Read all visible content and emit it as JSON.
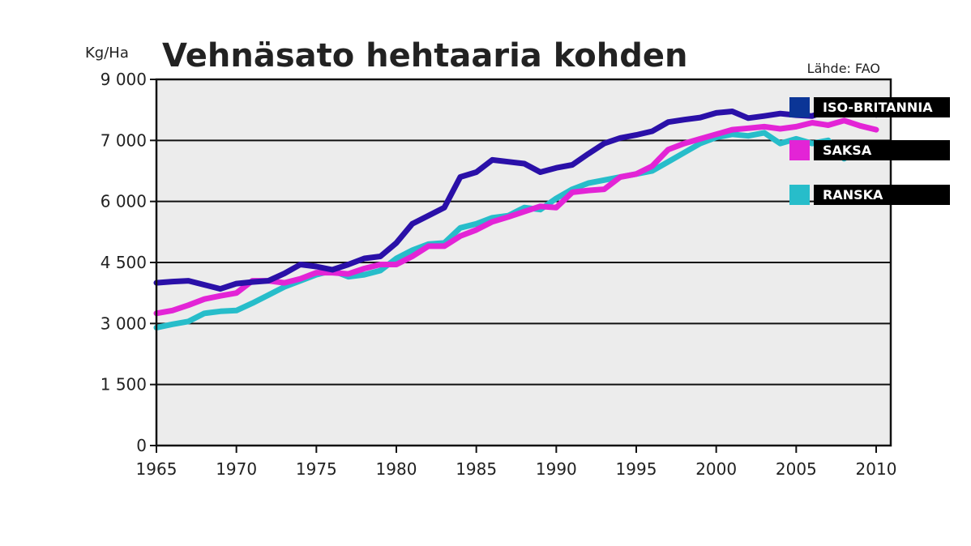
{
  "chart_data": {
    "type": "line",
    "title": "Vehnäsato hehtaaria kohden",
    "ylabel": "Kg/Ha",
    "xlabel": "",
    "source": "Lähde: FAO",
    "xlim": [
      1965,
      2011
    ],
    "ylim": [
      0,
      9000
    ],
    "x_ticks": [
      1965,
      1970,
      1975,
      1980,
      1985,
      1990,
      1995,
      2000,
      2005,
      2010
    ],
    "y_ticks": [
      0,
      1500,
      3000,
      4500,
      6000,
      7000,
      9000
    ],
    "y_tick_labels": [
      "0",
      "1 500",
      "3 000",
      "4 500",
      "6 000",
      "7 000",
      "9 000"
    ],
    "grid": "horizontal",
    "legend_position": "right",
    "x": [
      1965,
      1966,
      1967,
      1968,
      1969,
      1970,
      1971,
      1972,
      1973,
      1974,
      1975,
      1976,
      1977,
      1978,
      1979,
      1980,
      1981,
      1982,
      1983,
      1984,
      1985,
      1986,
      1987,
      1988,
      1989,
      1990,
      1991,
      1992,
      1993,
      1994,
      1995,
      1996,
      1997,
      1998,
      1999,
      2000,
      2001,
      2002,
      2003,
      2004,
      2005,
      2006,
      2007,
      2008,
      2009,
      2010
    ],
    "series": [
      {
        "name": "ISO-BRITANNIA",
        "color": "#2a10a8",
        "values": [
          4000,
          4030,
          4050,
          3950,
          3850,
          3980,
          4020,
          4050,
          4230,
          4450,
          4400,
          4320,
          4450,
          4600,
          4650,
          4980,
          5450,
          5650,
          5850,
          6400,
          6480,
          6680,
          6650,
          6620,
          6480,
          6550,
          6600,
          6780,
          6950,
          7080,
          7180,
          7300,
          7600,
          7680,
          7750,
          7900,
          7950,
          7730,
          7800,
          7880,
          7830,
          7800,
          7980,
          7850,
          7940,
          7840
        ]
      },
      {
        "name": "SAKSA",
        "color": "#e324d6",
        "values": [
          3250,
          3320,
          3450,
          3600,
          3680,
          3750,
          4050,
          4050,
          4000,
          4100,
          4250,
          4250,
          4220,
          4350,
          4450,
          4450,
          4650,
          4900,
          4900,
          5150,
          5300,
          5500,
          5620,
          5750,
          5880,
          5850,
          6150,
          6180,
          6200,
          6400,
          6450,
          6580,
          6850,
          6950,
          7050,
          7200,
          7350,
          7400,
          7450,
          7380,
          7450,
          7580,
          7500,
          7650,
          7480,
          7350
        ]
      },
      {
        "name": "RANSKA",
        "color": "#27bdca",
        "values": [
          2900,
          2980,
          3050,
          3250,
          3300,
          3320,
          3500,
          3700,
          3900,
          4050,
          4200,
          4300,
          4150,
          4200,
          4300,
          4600,
          4800,
          4950,
          4980,
          5350,
          5450,
          5600,
          5650,
          5850,
          5800,
          6050,
          6200,
          6300,
          6350,
          6400,
          6450,
          6500,
          6650,
          6800,
          6950,
          7100,
          7200,
          7150,
          7250,
          6950,
          7050,
          6950,
          7000,
          6700,
          6950,
          6900
        ]
      }
    ]
  }
}
